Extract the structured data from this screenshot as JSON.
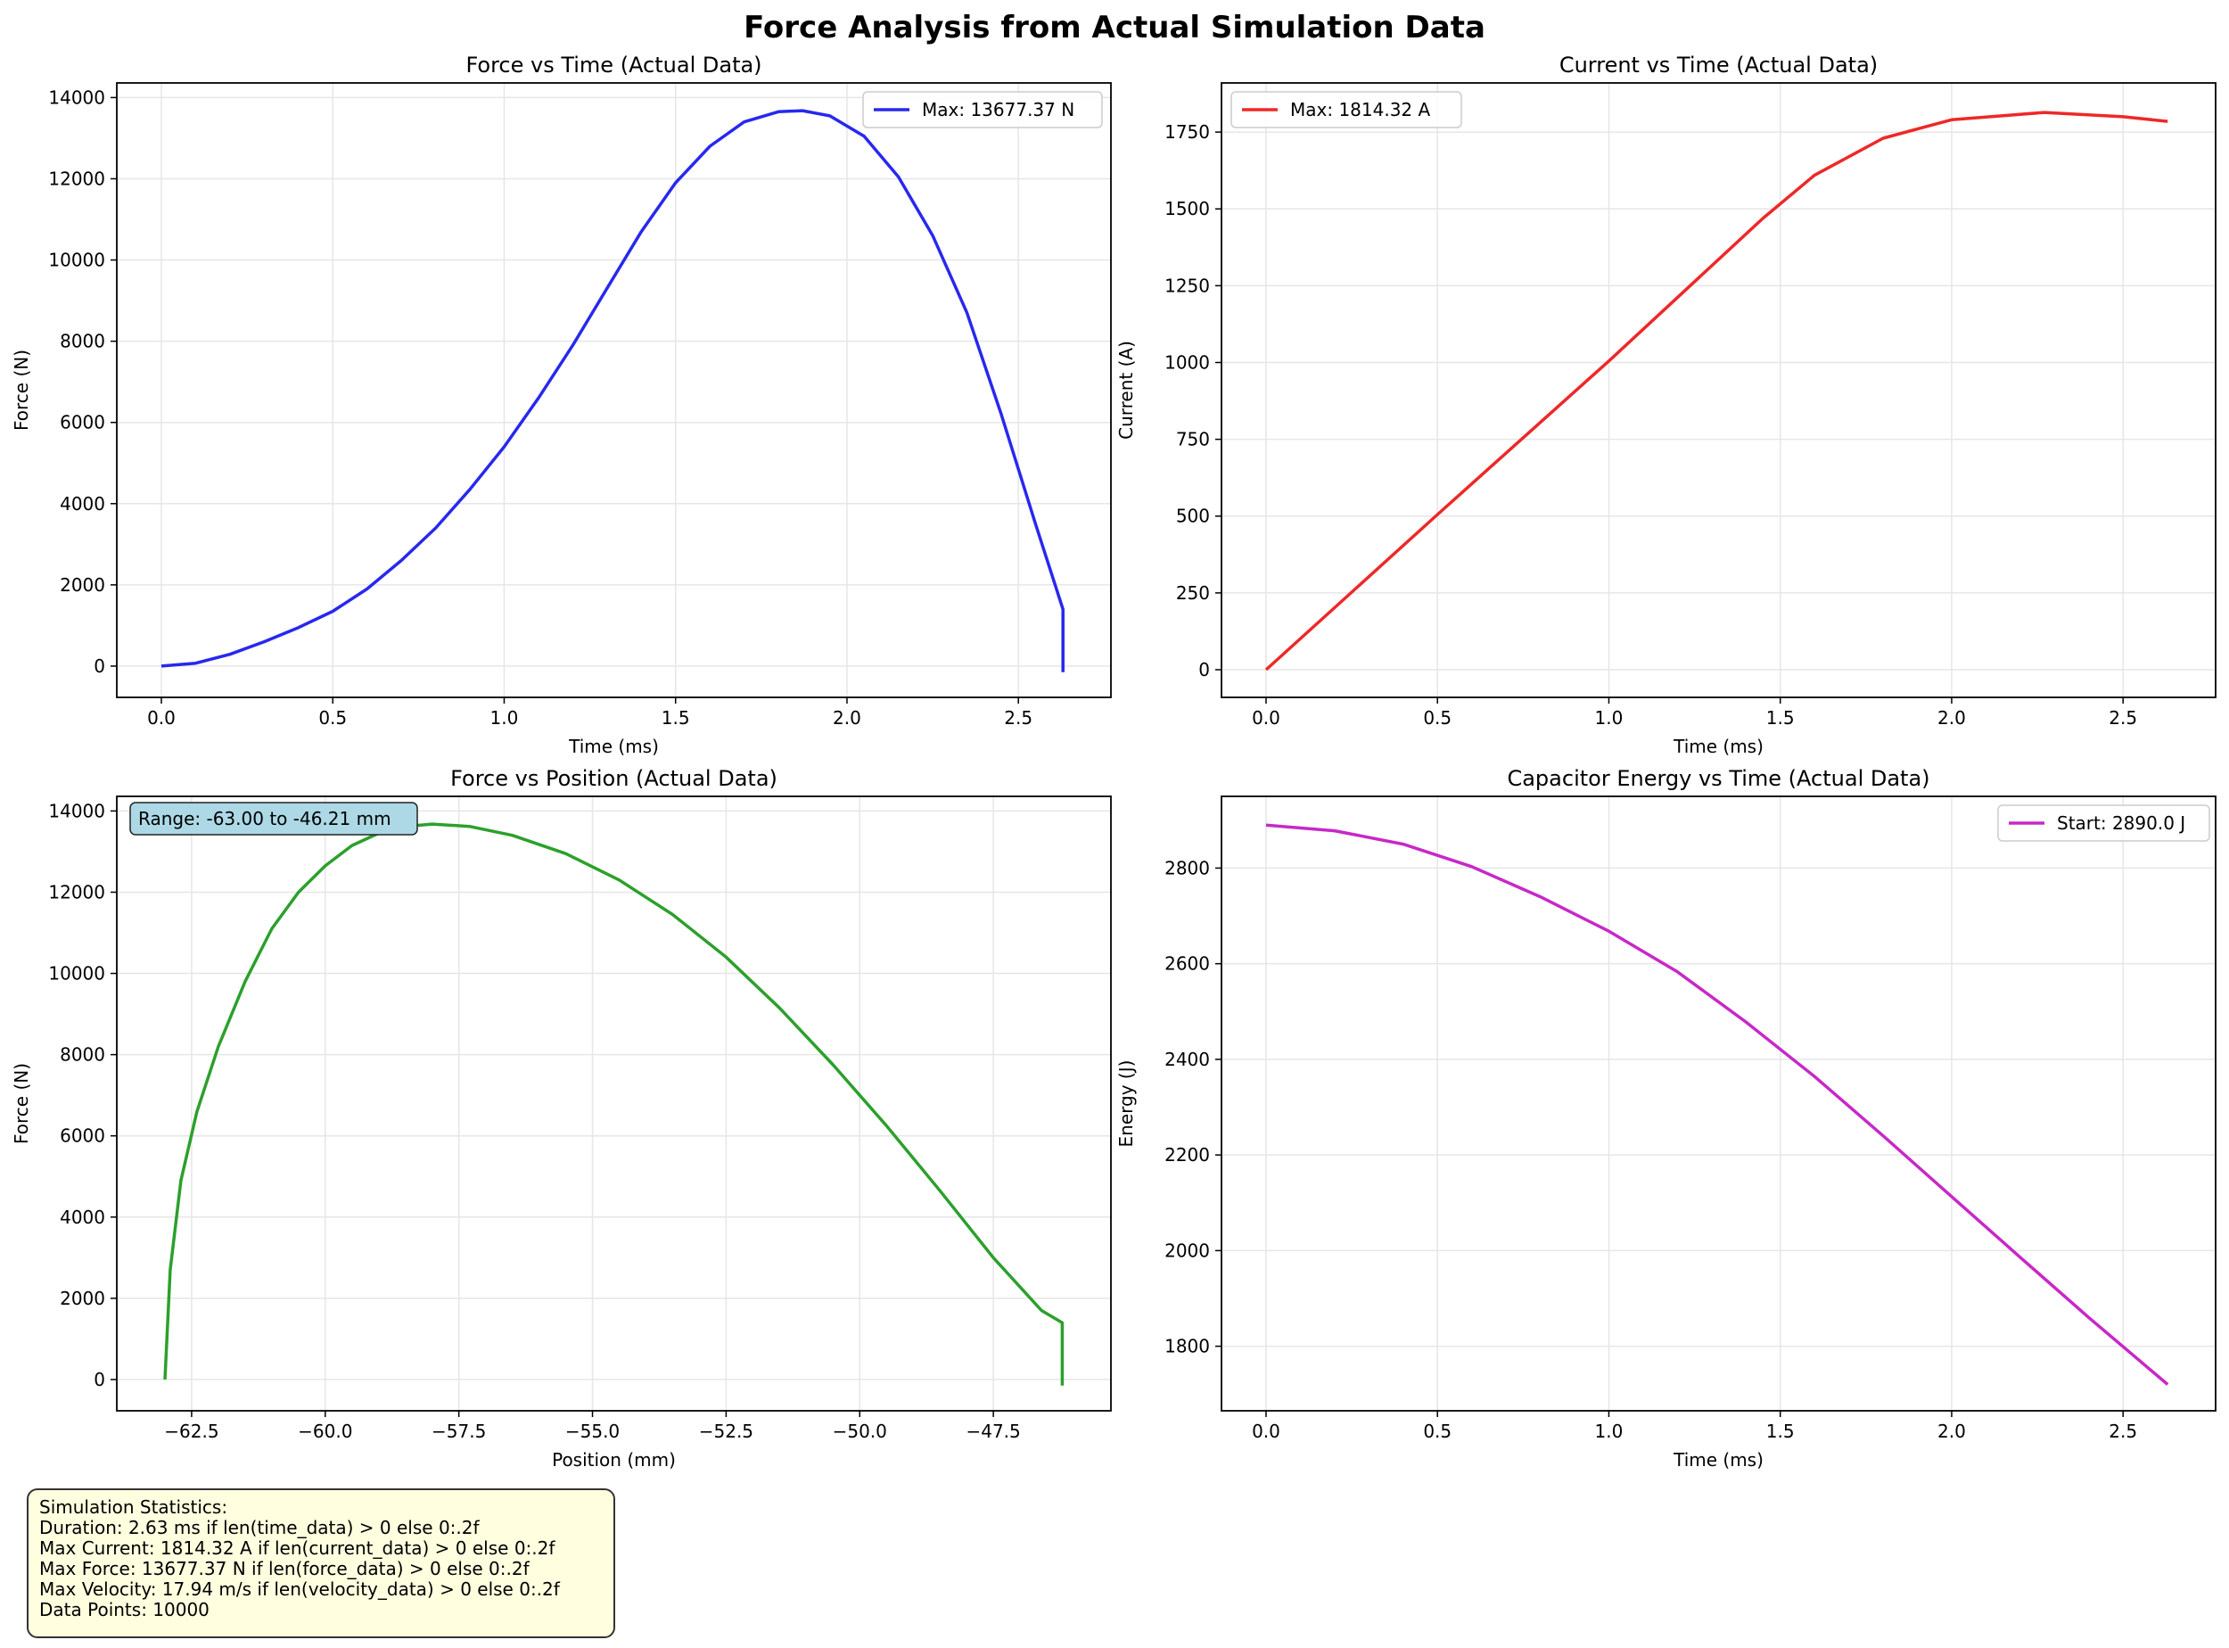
{
  "figure": {
    "title": "Force Analysis from Actual Simulation Data"
  },
  "chart_data": [
    {
      "type": "line",
      "title": "Force vs Time (Actual Data)",
      "xlabel": "Time (ms)",
      "ylabel": "Force (N)",
      "xlim": [
        -0.13,
        2.77
      ],
      "ylim": [
        -770,
        14360
      ],
      "xticks": [
        0.0,
        0.5,
        1.0,
        1.5,
        2.0,
        2.5
      ],
      "yticks": [
        0,
        2000,
        4000,
        6000,
        8000,
        10000,
        12000,
        14000
      ],
      "grid": true,
      "legend_position": "upper right",
      "series": [
        {
          "name": "Max: 13677.37 N",
          "color": "#2828ee",
          "x": [
            0.0,
            0.1,
            0.2,
            0.3,
            0.4,
            0.5,
            0.6,
            0.7,
            0.8,
            0.9,
            1.0,
            1.1,
            1.2,
            1.3,
            1.4,
            1.5,
            1.6,
            1.7,
            1.8,
            1.87,
            1.95,
            2.05,
            2.15,
            2.25,
            2.35,
            2.45,
            2.55,
            2.63,
            2.63
          ],
          "y": [
            0,
            70,
            290,
            600,
            950,
            1350,
            1900,
            2600,
            3400,
            4350,
            5400,
            6600,
            7900,
            9300,
            10700,
            11900,
            12800,
            13400,
            13650,
            13677,
            13550,
            13050,
            12050,
            10600,
            8700,
            6200,
            3500,
            1400,
            -150
          ]
        }
      ]
    },
    {
      "type": "line",
      "title": "Current vs Time (Actual Data)",
      "xlabel": "Time (ms)",
      "ylabel": "Current (A)",
      "xlim": [
        -0.13,
        2.77
      ],
      "ylim": [
        -90,
        1910
      ],
      "xticks": [
        0.0,
        0.5,
        1.0,
        1.5,
        2.0,
        2.5
      ],
      "yticks": [
        0,
        250,
        500,
        750,
        1000,
        1250,
        1500,
        1750
      ],
      "grid": true,
      "legend_position": "upper left",
      "series": [
        {
          "name": "Max: 1814.32 A",
          "color": "#ee2828",
          "x": [
            0.0,
            0.5,
            1.0,
            1.45,
            1.6,
            1.8,
            2.0,
            2.27,
            2.5,
            2.63
          ],
          "y": [
            0,
            505,
            1005,
            1470,
            1610,
            1730,
            1790,
            1814,
            1800,
            1785
          ]
        }
      ]
    },
    {
      "type": "line",
      "title": "Force vs Position (Actual Data)",
      "xlabel": "Position (mm)",
      "ylabel": "Force (N)",
      "xlim": [
        -63.9,
        -45.3
      ],
      "ylim": [
        -770,
        14360
      ],
      "xticks": [
        -62.5,
        -60.0,
        -57.5,
        -55.0,
        -52.5,
        -50.0,
        -47.5
      ],
      "yticks": [
        0,
        2000,
        4000,
        6000,
        8000,
        10000,
        12000,
        14000
      ],
      "grid": true,
      "annotation": "Range: -63.00 to -46.21 mm",
      "series": [
        {
          "name": "",
          "color": "#2ca02c",
          "x": [
            -63.0,
            -62.9,
            -62.7,
            -62.4,
            -62.0,
            -61.5,
            -61.0,
            -60.5,
            -60.0,
            -59.5,
            -59.0,
            -58.5,
            -58.0,
            -57.3,
            -56.5,
            -55.5,
            -54.5,
            -53.5,
            -52.5,
            -51.5,
            -50.5,
            -49.5,
            -48.5,
            -47.5,
            -46.6,
            -46.21,
            -46.21
          ],
          "y": [
            0,
            2700,
            4900,
            6600,
            8200,
            9800,
            11100,
            12000,
            12650,
            13150,
            13450,
            13620,
            13677,
            13620,
            13400,
            12950,
            12300,
            11450,
            10400,
            9150,
            7750,
            6250,
            4650,
            3000,
            1700,
            1400,
            -150
          ]
        }
      ]
    },
    {
      "type": "line",
      "title": "Capacitor Energy vs Time (Actual Data)",
      "xlabel": "Time (ms)",
      "ylabel": "Energy (J)",
      "xlim": [
        -0.13,
        2.77
      ],
      "ylim": [
        1665,
        2950
      ],
      "xticks": [
        0.0,
        0.5,
        1.0,
        1.5,
        2.0,
        2.5
      ],
      "yticks": [
        1800,
        2000,
        2200,
        2400,
        2600,
        2800
      ],
      "grid": true,
      "legend_position": "upper right",
      "series": [
        {
          "name": "Start: 2890.0 J",
          "color": "#c828c8",
          "x": [
            0.0,
            0.2,
            0.4,
            0.6,
            0.8,
            1.0,
            1.2,
            1.4,
            1.6,
            1.8,
            2.0,
            2.2,
            2.4,
            2.63
          ],
          "y": [
            2890,
            2878,
            2850,
            2803,
            2740,
            2668,
            2583,
            2478,
            2364,
            2240,
            2113,
            1986,
            1860,
            1720
          ]
        }
      ]
    }
  ],
  "stats": {
    "heading": "Simulation Statistics:",
    "duration": "Duration: 2.63 ms if len(time_data) > 0 else 0:.2f",
    "max_current": "Max Current: 1814.32 A if len(current_data) > 0 else 0:.2f",
    "max_force": "Max Force: 13677.37 N if len(force_data) > 0 else 0:.2f",
    "max_velocity": "Max Velocity: 17.94 m/s if len(velocity_data) > 0 else 0:.2f",
    "data_points": "Data Points: 10000"
  }
}
